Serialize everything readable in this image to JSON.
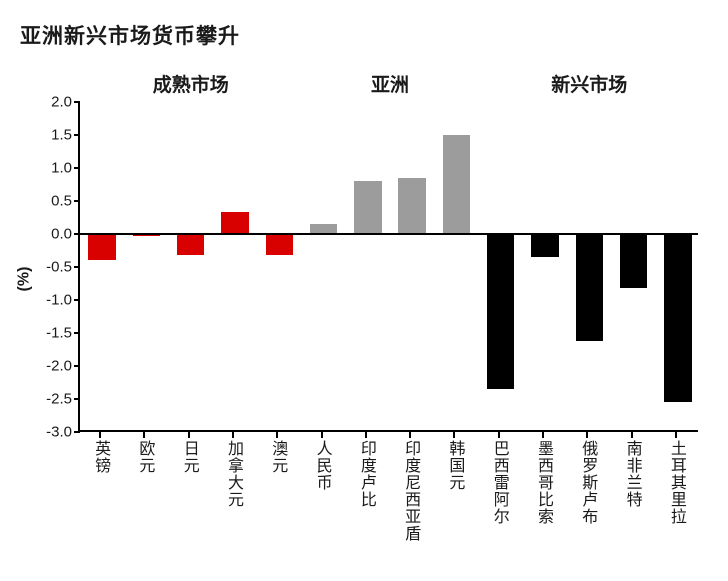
{
  "chart": {
    "type": "bar",
    "title": "亚洲新兴市场货币攀升",
    "title_fontsize": 21,
    "background_color": "#ffffff",
    "y_axis_label": "(%)",
    "ylim": [
      -3.0,
      2.0
    ],
    "ytick_step": 0.5,
    "yticks": [
      "2.0",
      "1.5",
      "1.0",
      "0.5",
      "0.0",
      "-0.5",
      "-1.0",
      "-1.5",
      "-2.0",
      "-2.5",
      "-3.0"
    ],
    "axis_color": "#000000",
    "label_fontsize": 16,
    "bar_width_ratio": 0.62,
    "groups": [
      {
        "label": "成熟市场",
        "start": 0,
        "end": 5
      },
      {
        "label": "亚洲",
        "start": 5,
        "end": 9
      },
      {
        "label": "新兴市场",
        "start": 9,
        "end": 14
      }
    ],
    "categories": [
      "英镑",
      "欧元",
      "日元",
      "加拿大元",
      "澳元",
      "人民币",
      "印度卢比",
      "印度尼西亚盾",
      "韩国元",
      "巴西雷阿尔",
      "墨西哥比索",
      "俄罗斯卢布",
      "南非兰特",
      "土耳其里拉"
    ],
    "values": [
      -0.4,
      -0.03,
      -0.32,
      0.33,
      -0.32,
      0.15,
      0.8,
      0.85,
      1.5,
      -2.35,
      -0.35,
      -1.62,
      -0.82,
      -2.55
    ],
    "bar_colors": [
      "#d90000",
      "#d90000",
      "#d90000",
      "#d90000",
      "#d90000",
      "#9c9c9c",
      "#9c9c9c",
      "#9c9c9c",
      "#9c9c9c",
      "#000000",
      "#000000",
      "#000000",
      "#000000",
      "#000000"
    ],
    "group_label_fontsize": 19
  }
}
